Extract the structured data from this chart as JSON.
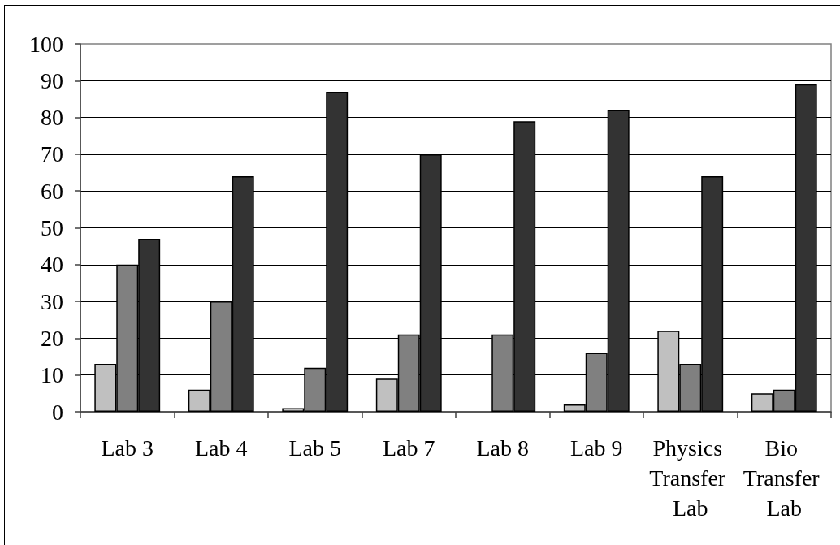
{
  "chart_data": {
    "type": "bar",
    "categories": [
      "Lab 3",
      "Lab 4",
      "Lab 5",
      "Lab 7",
      "Lab 8",
      "Lab 9",
      "Physics Transfer Lab",
      "Bio Transfer Lab"
    ],
    "series": [
      {
        "color": "#c0c0c0",
        "values": [
          13,
          6,
          1,
          9,
          null,
          2,
          22,
          5
        ]
      },
      {
        "color": "#808080",
        "values": [
          40,
          30,
          12,
          21,
          21,
          16,
          13,
          6
        ]
      },
      {
        "color": "#333333",
        "values": [
          47,
          64,
          87,
          70,
          79,
          82,
          64,
          89
        ]
      }
    ],
    "ylim": [
      0,
      100
    ],
    "yticks": [
      0,
      10,
      20,
      30,
      40,
      50,
      60,
      70,
      80,
      90,
      100
    ],
    "grid": "y"
  }
}
